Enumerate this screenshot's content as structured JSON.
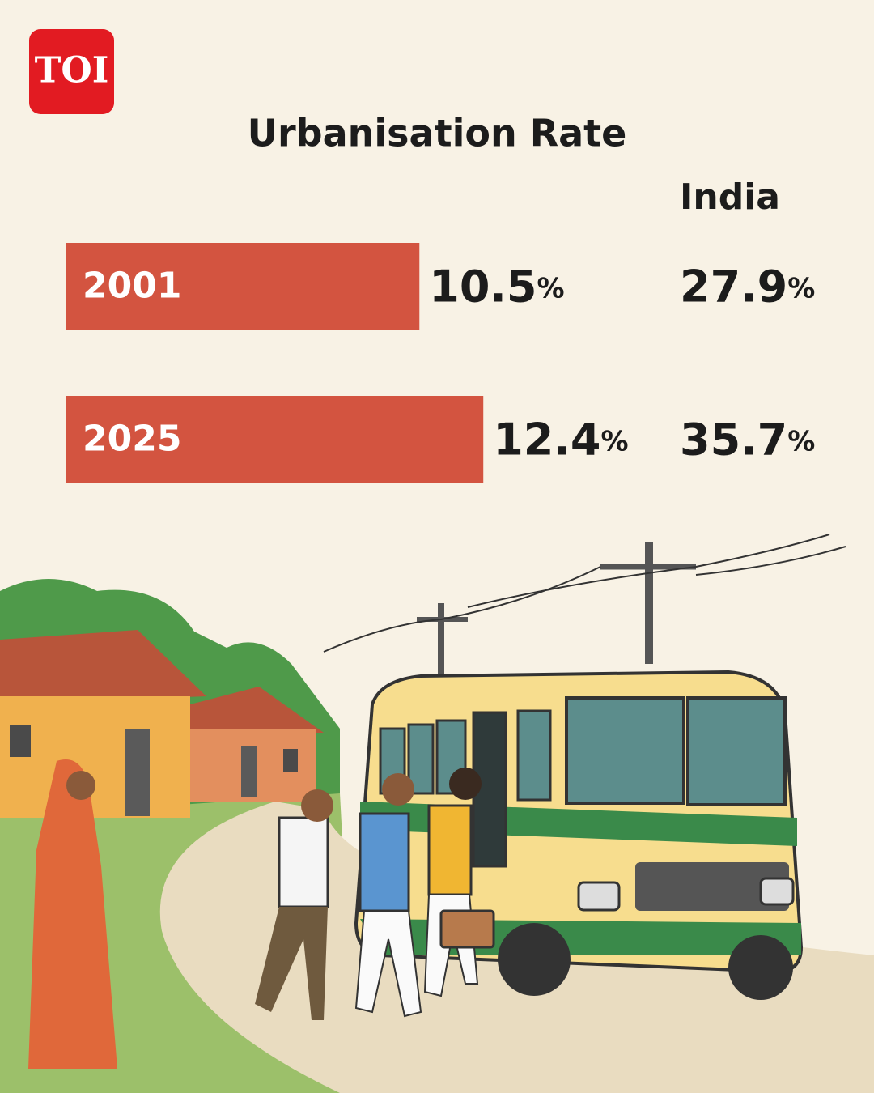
{
  "logo": "TOI",
  "chart_data": {
    "type": "bar",
    "orientation": "horizontal",
    "title": "Urbanisation Rate",
    "categories": [
      "2001",
      "2025"
    ],
    "values": [
      10.5,
      12.4
    ],
    "value_labels": [
      "10.5%",
      "12.4%"
    ],
    "color": "#d35440",
    "comparison": {
      "name": "India",
      "values": [
        27.9,
        35.7
      ],
      "value_labels": [
        "27.9%",
        "35.7%"
      ]
    }
  }
}
